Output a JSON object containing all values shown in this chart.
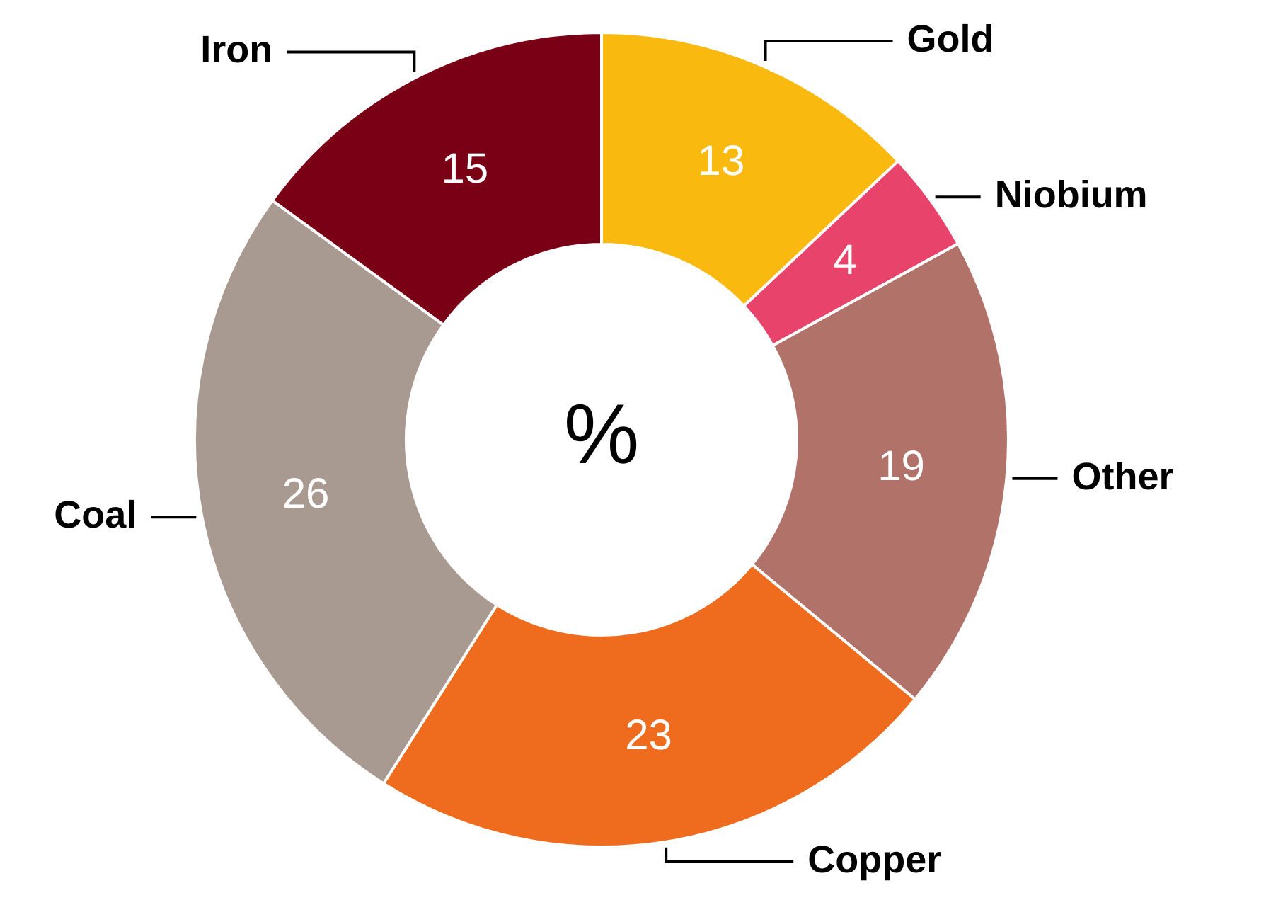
{
  "chart_data": {
    "type": "donut",
    "categories": [
      "Gold",
      "Niobium",
      "Other",
      "Copper",
      "Coal",
      "Iron"
    ],
    "values": [
      13,
      4,
      19,
      23,
      26,
      15
    ],
    "colors": [
      "#f9b90f",
      "#e8436a",
      "#b1726a",
      "#ef6c1f",
      "#a89a91",
      "#7a0016"
    ],
    "data_labels": true,
    "legend": false,
    "annotations": [
      "%"
    ]
  }
}
